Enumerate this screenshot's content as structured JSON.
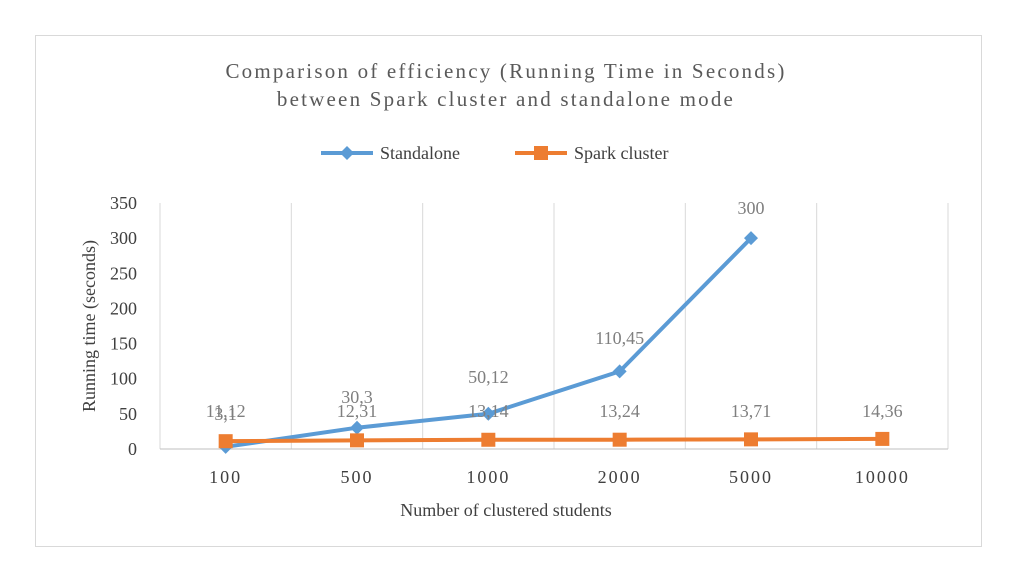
{
  "chart_data": {
    "type": "line",
    "title": "Comparison of efficiency (Running Time in Seconds)",
    "subtitle": "between Spark cluster and standalone mode",
    "xlabel": "Number of clustered students",
    "ylabel": "Running time (seconds)",
    "categories": [
      "100",
      "500",
      "1000",
      "2000",
      "5000",
      "10000"
    ],
    "y_ticks": [
      "0",
      "50",
      "100",
      "150",
      "200",
      "250",
      "300",
      "350"
    ],
    "ylim": [
      0,
      350
    ],
    "grid": "vertical",
    "legend": "top",
    "series": [
      {
        "name": "Standalone",
        "values": [
          3.1,
          30.3,
          50.12,
          110.45,
          300,
          null
        ],
        "labels": [
          "3,1",
          "30,3",
          "50,12",
          "110,45",
          "300",
          ""
        ],
        "color": "#5b9bd5",
        "marker": "diamond"
      },
      {
        "name": "Spark cluster",
        "values": [
          11.12,
          12.31,
          13.14,
          13.24,
          13.71,
          14.36
        ],
        "labels": [
          "11,12",
          "12,31",
          "13,14",
          "13,24",
          "13,71",
          "14,36"
        ],
        "color": "#ed7d31",
        "marker": "square"
      }
    ]
  }
}
